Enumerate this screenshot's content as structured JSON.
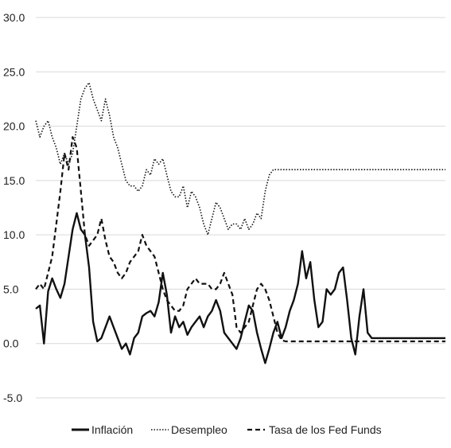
{
  "chart_data": {
    "type": "line",
    "title": "",
    "xlabel": "",
    "ylabel": "",
    "ylim": [
      -5,
      30
    ],
    "yticks": [
      30,
      25,
      20,
      15,
      10,
      5,
      0,
      -5
    ],
    "yticks_labels": [
      "30.0",
      "25.0",
      "20.0",
      "15.0",
      "10.0",
      "5.0",
      "0.0",
      "-5.0"
    ],
    "grid": true,
    "legend_position": "bottom",
    "x": [
      0,
      1,
      2,
      3,
      4,
      5,
      6,
      7,
      8,
      9,
      10,
      11,
      12,
      13,
      14,
      15,
      16,
      17,
      18,
      19,
      20,
      21,
      22,
      23,
      24,
      25,
      26,
      27,
      28,
      29,
      30,
      31,
      32,
      33,
      34,
      35,
      36,
      37,
      38,
      39,
      40,
      41,
      42,
      43,
      44,
      45,
      46,
      47,
      48,
      49,
      50,
      51,
      52,
      53,
      54,
      55,
      56,
      57,
      58,
      59,
      60,
      61,
      62,
      63,
      64,
      65,
      66,
      67,
      68,
      69,
      70,
      71,
      72,
      73,
      74,
      75,
      76,
      77,
      78,
      79,
      80,
      81,
      82,
      83,
      84,
      85,
      86,
      87,
      88,
      89,
      90,
      91,
      92,
      93,
      94,
      95,
      96,
      97,
      98,
      99,
      100
    ],
    "series": [
      {
        "name": "Inflación",
        "style": "solid",
        "values": [
          3.2,
          3.5,
          0.0,
          4.8,
          6.0,
          5.0,
          4.2,
          5.5,
          8.0,
          10.5,
          12.0,
          10.5,
          10.0,
          7.0,
          2.0,
          0.2,
          0.5,
          1.5,
          2.5,
          1.5,
          0.5,
          -0.5,
          0.0,
          -1.0,
          0.5,
          1.0,
          2.5,
          2.8,
          3.0,
          2.5,
          3.8,
          6.5,
          4.5,
          1.0,
          2.5,
          1.5,
          2.0,
          0.8,
          1.5,
          2.0,
          2.5,
          1.5,
          2.5,
          3.0,
          4.0,
          3.0,
          1.0,
          0.5,
          0.0,
          -0.5,
          0.5,
          2.0,
          3.5,
          3.0,
          1.0,
          -0.5,
          -1.8,
          -0.5,
          1.0,
          2.0,
          0.5,
          1.5,
          3.0,
          4.0,
          5.5,
          8.5,
          6.0,
          7.5,
          4.0,
          1.5,
          2.0,
          5.0,
          4.5,
          5.0,
          6.5,
          7.0,
          4.0,
          0.5,
          -1.0,
          2.5,
          5.0,
          1.0,
          0.5,
          0.5,
          0.5,
          0.5,
          0.5,
          0.5,
          0.5,
          0.5,
          0.5,
          0.5,
          0.5,
          0.5,
          0.5,
          0.5,
          0.5,
          0.5,
          0.5,
          0.5,
          0.5
        ]
      },
      {
        "name": "Desempleo",
        "style": "dotted",
        "values": [
          20.5,
          19.0,
          20.0,
          20.5,
          19.0,
          18.0,
          16.5,
          17.5,
          16.5,
          17.5,
          20.0,
          22.5,
          23.5,
          24.0,
          22.5,
          21.5,
          20.5,
          22.5,
          21.0,
          19.0,
          18.0,
          16.5,
          15.0,
          14.5,
          14.5,
          14.0,
          14.5,
          16.0,
          15.5,
          17.0,
          16.5,
          17.0,
          15.5,
          14.0,
          13.5,
          13.5,
          14.5,
          12.5,
          14.0,
          13.5,
          12.5,
          11.0,
          10.0,
          11.5,
          13.0,
          12.5,
          11.5,
          10.5,
          11.0,
          11.0,
          10.5,
          11.5,
          10.5,
          11.0,
          12.0,
          11.5,
          14.0,
          15.5,
          16.0,
          16.0,
          16.0,
          16.0,
          16.0,
          16.0,
          16.0,
          16.0,
          16.0,
          16.0,
          16.0,
          16.0,
          16.0,
          16.0,
          16.0,
          16.0,
          16.0,
          16.0,
          16.0,
          16.0,
          16.0,
          16.0,
          16.0,
          16.0,
          16.0,
          16.0,
          16.0,
          16.0,
          16.0,
          16.0,
          16.0,
          16.0,
          16.0,
          16.0,
          16.0,
          16.0,
          16.0,
          16.0,
          16.0,
          16.0,
          16.0,
          16.0,
          16.0
        ]
      },
      {
        "name": "Tasa de los Fed Funds",
        "style": "dashed",
        "values": [
          5.0,
          5.5,
          5.0,
          6.5,
          8.0,
          11.0,
          14.0,
          17.5,
          16.0,
          19.0,
          18.0,
          14.0,
          10.0,
          9.0,
          9.5,
          10.0,
          11.5,
          9.5,
          8.0,
          7.5,
          6.5,
          6.0,
          6.5,
          7.5,
          8.0,
          8.5,
          10.0,
          9.0,
          8.5,
          8.0,
          6.5,
          5.0,
          4.0,
          3.5,
          3.0,
          3.0,
          3.5,
          5.0,
          5.5,
          6.0,
          5.5,
          5.5,
          5.5,
          5.0,
          5.0,
          5.5,
          6.5,
          5.5,
          4.5,
          1.5,
          1.0,
          1.5,
          2.0,
          3.5,
          5.0,
          5.5,
          5.0,
          4.0,
          2.5,
          1.0,
          0.3,
          0.2,
          0.2,
          0.2,
          0.2,
          0.2,
          0.2,
          0.2,
          0.2,
          0.2,
          0.2,
          0.2,
          0.2,
          0.2,
          0.2,
          0.2,
          0.2,
          0.2,
          0.2,
          0.2,
          0.2,
          0.2,
          0.2,
          0.2,
          0.2,
          0.2,
          0.2,
          0.2,
          0.2,
          0.2,
          0.2,
          0.2,
          0.2,
          0.2,
          0.2,
          0.2,
          0.2,
          0.2,
          0.2,
          0.2,
          0.2
        ]
      }
    ]
  },
  "legend": {
    "items": [
      {
        "label": "Inflación",
        "style": "solid"
      },
      {
        "label": "Desempleo",
        "style": "dotted"
      },
      {
        "label": "Tasa de los Fed Funds",
        "style": "dashed"
      }
    ]
  }
}
